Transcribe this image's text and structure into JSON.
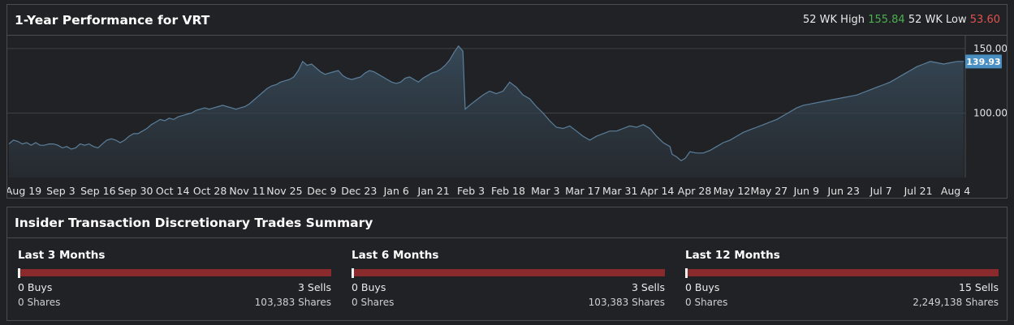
{
  "performance": {
    "title": "1-Year Performance for VRT",
    "high_label": "52 WK High",
    "high_value": "155.84",
    "low_label": "52 WK Low",
    "low_value": "53.60",
    "current_price": "139.93",
    "colors": {
      "high": "#4caf50",
      "low": "#e05252",
      "price_tag": "#4a8fc1",
      "line": "#5b7f9c"
    }
  },
  "chart_data": {
    "type": "area",
    "x_ticks": [
      "Aug 19",
      "Sep 3",
      "Sep 16",
      "Sep 30",
      "Oct 14",
      "Oct 28",
      "Nov 11",
      "Nov 25",
      "Dec 9",
      "Dec 23",
      "Jan 6",
      "Jan 21",
      "Feb 3",
      "Feb 18",
      "Mar 3",
      "Mar 17",
      "Mar 31",
      "Apr 14",
      "Apr 28",
      "May 12",
      "May 27",
      "Jun 9",
      "Jun 23",
      "Jul 7",
      "Jul 21",
      "Aug 4"
    ],
    "y_ticks": [
      150.0,
      100.0
    ],
    "y_tick_labels": [
      "150.00",
      "100.00"
    ],
    "ylim": [
      50,
      160
    ],
    "last_value": 139.93,
    "series": [
      {
        "values": [
          [
            0,
            76
          ],
          [
            2,
            79
          ],
          [
            4,
            78
          ],
          [
            6,
            76
          ],
          [
            8,
            77
          ],
          [
            10,
            75
          ],
          [
            12,
            77
          ],
          [
            14,
            75
          ],
          [
            16,
            75
          ],
          [
            18,
            76
          ],
          [
            20,
            76
          ],
          [
            22,
            75
          ],
          [
            24,
            73
          ],
          [
            26,
            74
          ],
          [
            28,
            72
          ],
          [
            30,
            73
          ],
          [
            32,
            76
          ],
          [
            34,
            75
          ],
          [
            36,
            76
          ],
          [
            38,
            74
          ],
          [
            40,
            73
          ],
          [
            42,
            76
          ],
          [
            44,
            79
          ],
          [
            46,
            80
          ],
          [
            48,
            79
          ],
          [
            50,
            77
          ],
          [
            52,
            79
          ],
          [
            54,
            82
          ],
          [
            56,
            84
          ],
          [
            58,
            84
          ],
          [
            60,
            86
          ],
          [
            62,
            88
          ],
          [
            64,
            91
          ],
          [
            66,
            93
          ],
          [
            68,
            95
          ],
          [
            70,
            94
          ],
          [
            72,
            96
          ],
          [
            74,
            95
          ],
          [
            76,
            97
          ],
          [
            78,
            98
          ],
          [
            80,
            99
          ],
          [
            82,
            100
          ],
          [
            84,
            102
          ],
          [
            86,
            103
          ],
          [
            88,
            104
          ],
          [
            90,
            103
          ],
          [
            92,
            104
          ],
          [
            94,
            105
          ],
          [
            96,
            106
          ],
          [
            98,
            105
          ],
          [
            100,
            104
          ],
          [
            102,
            103
          ],
          [
            104,
            104
          ],
          [
            106,
            105
          ],
          [
            108,
            107
          ],
          [
            110,
            110
          ],
          [
            112,
            113
          ],
          [
            114,
            116
          ],
          [
            116,
            119
          ],
          [
            118,
            121
          ],
          [
            120,
            122
          ],
          [
            122,
            124
          ],
          [
            124,
            125
          ],
          [
            126,
            126
          ],
          [
            128,
            128
          ],
          [
            130,
            133
          ],
          [
            132,
            140
          ],
          [
            134,
            137
          ],
          [
            136,
            138
          ],
          [
            138,
            135
          ],
          [
            140,
            132
          ],
          [
            142,
            130
          ],
          [
            144,
            131
          ],
          [
            146,
            132
          ],
          [
            148,
            133
          ],
          [
            150,
            129
          ],
          [
            152,
            127
          ],
          [
            154,
            126
          ],
          [
            156,
            127
          ],
          [
            158,
            128
          ],
          [
            160,
            131
          ],
          [
            162,
            133
          ],
          [
            164,
            132
          ],
          [
            166,
            130
          ],
          [
            168,
            128
          ],
          [
            170,
            126
          ],
          [
            172,
            124
          ],
          [
            174,
            123
          ],
          [
            176,
            124
          ],
          [
            178,
            127
          ],
          [
            180,
            128
          ],
          [
            182,
            126
          ],
          [
            184,
            124
          ],
          [
            186,
            127
          ],
          [
            188,
            129
          ],
          [
            190,
            131
          ],
          [
            192,
            132
          ],
          [
            194,
            134
          ],
          [
            196,
            137
          ],
          [
            198,
            141
          ],
          [
            200,
            147
          ],
          [
            202,
            152
          ],
          [
            204,
            148
          ],
          [
            205,
            103
          ],
          [
            207,
            106
          ],
          [
            210,
            110
          ],
          [
            213,
            114
          ],
          [
            216,
            117
          ],
          [
            219,
            115
          ],
          [
            222,
            117
          ],
          [
            225,
            124
          ],
          [
            228,
            120
          ],
          [
            231,
            114
          ],
          [
            234,
            111
          ],
          [
            237,
            105
          ],
          [
            240,
            100
          ],
          [
            243,
            94
          ],
          [
            246,
            89
          ],
          [
            249,
            88
          ],
          [
            252,
            90
          ],
          [
            255,
            86
          ],
          [
            258,
            82
          ],
          [
            261,
            79
          ],
          [
            264,
            82
          ],
          [
            267,
            84
          ],
          [
            270,
            86
          ],
          [
            273,
            86
          ],
          [
            276,
            88
          ],
          [
            279,
            90
          ],
          [
            282,
            89
          ],
          [
            285,
            91
          ],
          [
            288,
            88
          ],
          [
            291,
            82
          ],
          [
            294,
            77
          ],
          [
            297,
            74
          ],
          [
            298,
            68
          ],
          [
            300,
            66
          ],
          [
            302,
            63
          ],
          [
            304,
            65
          ],
          [
            306,
            70
          ],
          [
            309,
            69
          ],
          [
            312,
            69
          ],
          [
            315,
            71
          ],
          [
            318,
            74
          ],
          [
            321,
            77
          ],
          [
            324,
            79
          ],
          [
            327,
            82
          ],
          [
            330,
            85
          ],
          [
            333,
            87
          ],
          [
            336,
            89
          ],
          [
            339,
            91
          ],
          [
            342,
            93
          ],
          [
            345,
            95
          ],
          [
            348,
            98
          ],
          [
            351,
            101
          ],
          [
            354,
            104
          ],
          [
            357,
            106
          ],
          [
            360,
            107
          ],
          [
            363,
            108
          ],
          [
            366,
            109
          ],
          [
            369,
            110
          ],
          [
            372,
            111
          ],
          [
            375,
            112
          ],
          [
            378,
            113
          ],
          [
            381,
            114
          ],
          [
            384,
            116
          ],
          [
            387,
            118
          ],
          [
            390,
            120
          ],
          [
            393,
            122
          ],
          [
            396,
            124
          ],
          [
            399,
            127
          ],
          [
            402,
            130
          ],
          [
            405,
            133
          ],
          [
            408,
            136
          ],
          [
            411,
            138
          ],
          [
            414,
            140
          ],
          [
            417,
            139
          ],
          [
            420,
            138
          ],
          [
            423,
            139
          ],
          [
            426,
            140
          ],
          [
            429,
            140
          ]
        ]
      }
    ]
  },
  "insider": {
    "title": "Insider Transaction Discretionary Trades Summary",
    "colors": {
      "sell_bar": "#8b2a2d",
      "buy_marker": "#f2f2f2"
    },
    "groups": [
      {
        "title": "Last 3 Months",
        "buys": "0 Buys",
        "sells": "3 Sells",
        "buy_shares": "0 Shares",
        "sell_shares": "103,383 Shares",
        "buy_fraction": 0
      },
      {
        "title": "Last 6 Months",
        "buys": "0 Buys",
        "sells": "3 Sells",
        "buy_shares": "0 Shares",
        "sell_shares": "103,383 Shares",
        "buy_fraction": 0
      },
      {
        "title": "Last 12 Months",
        "buys": "0 Buys",
        "sells": "15 Sells",
        "buy_shares": "0 Shares",
        "sell_shares": "2,249,138 Shares",
        "buy_fraction": 0
      }
    ]
  }
}
